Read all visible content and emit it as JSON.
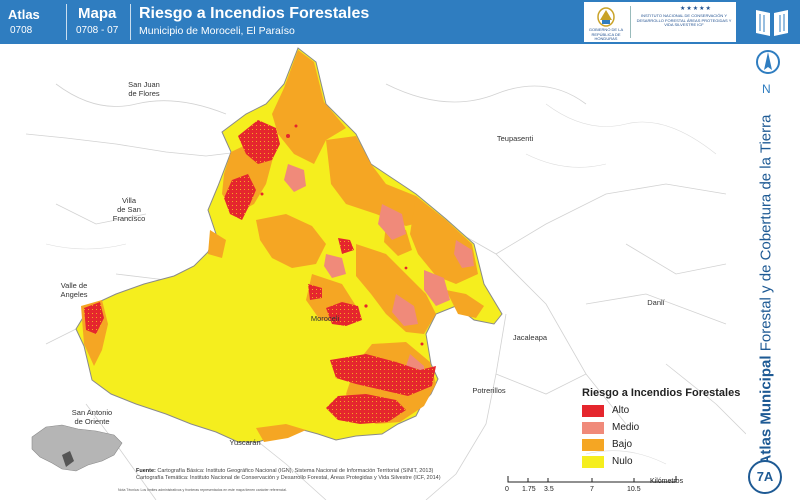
{
  "header": {
    "atlas_label": "Atlas",
    "atlas_code": "0708",
    "map_label": "Mapa",
    "map_code": "0708 - 07",
    "title": "Riesgo a Incendios Forestales",
    "subtitle": "Municipio de Moroceli, El Paraíso",
    "logo_left_text": "GOBIERNO DE LA REPÚBLICA DE HONDURAS",
    "logo_right_text": "INSTITUTO NACIONAL DE CONSERVACIÓN Y DESARROLLO FORESTAL ÁREAS PROTEGIDAS Y VIDA SILVESTRE ICF"
  },
  "side": {
    "north_letter": "N",
    "title_bold": "Atlas Municipal",
    "title_regular": " Forestal y de Cobertura de la Tierra",
    "badge": "7A"
  },
  "places": {
    "san_juan": "San Juan\nde Flores",
    "teupasenti": "Teupasenti",
    "villa_san_francisco": "Villa\nde San\nFrancisco",
    "valle_angeles": "Valle de\nAngeles",
    "moroceli": "Moroceli",
    "danli": "Danlí",
    "jacaleapa": "Jacaleapa",
    "potrerillos": "Potrerillos",
    "san_antonio": "San Antonio\nde Oriente",
    "yuscaran": "Yuscarán"
  },
  "legend": {
    "title": "Riesgo a Incendios Forestales",
    "items": [
      {
        "label": "Alto",
        "color": "#e5262d"
      },
      {
        "label": "Medio",
        "color": "#f08a7a"
      },
      {
        "label": "Bajo",
        "color": "#f5a623"
      },
      {
        "label": "Nulo",
        "color": "#f5ee1e"
      }
    ]
  },
  "footer": {
    "sources_heading": "Fuente:",
    "sources_line1": "Cartografía Básica: Instituto Geográfico Nacional (IGN), Sistema Nacional de Información Territorial (SINIT, 2013)",
    "sources_line2": "Cartografía Temática: Instituto Nacional de Conservación y Desarrollo Forestal, Áreas Protegidas y Vida Silvestre (ICF, 2014)",
    "note": "Nota Técnica: Los límites administrativos y fronteras representados en este mapa tienen carácter referencial."
  },
  "scale": {
    "ticks": [
      "0",
      "1.75",
      "3.5",
      "7",
      "10.5"
    ],
    "unit": "Kilómetros"
  },
  "colors": {
    "header_blue": "#2f7dc0",
    "nulo": "#f5ee1e",
    "bajo": "#f5a623",
    "medio": "#f08a7a",
    "alto": "#e5262d"
  }
}
